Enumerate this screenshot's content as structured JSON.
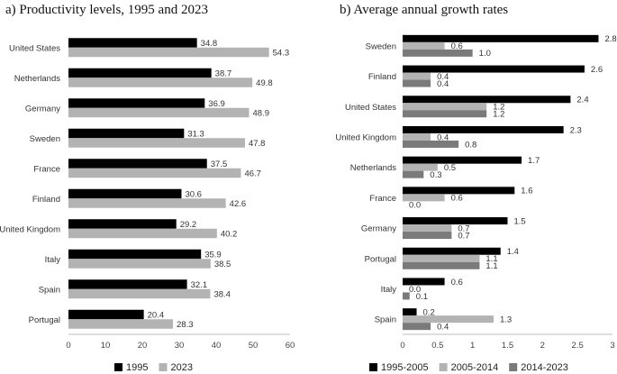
{
  "chart_data": [
    {
      "type": "bar",
      "orientation": "horizontal",
      "title": "a) Productivity levels, 1995 and 2023",
      "categories": [
        "United States",
        "Netherlands",
        "Germany",
        "Sweden",
        "France",
        "Finland",
        "United Kingdom",
        "Italy",
        "Spain",
        "Portugal"
      ],
      "series": [
        {
          "name": "1995",
          "color": "#000000",
          "values": [
            34.8,
            38.7,
            36.9,
            31.3,
            37.5,
            30.6,
            29.2,
            35.9,
            32.1,
            20.4
          ]
        },
        {
          "name": "2023",
          "color": "#b3b3b3",
          "values": [
            54.3,
            49.8,
            48.9,
            47.8,
            46.7,
            42.6,
            40.2,
            38.5,
            38.4,
            28.3
          ]
        }
      ],
      "xlim": [
        0,
        60
      ],
      "xticks": [
        "0",
        "10",
        "20",
        "30",
        "40",
        "50",
        "60"
      ],
      "grid": false,
      "legend": "bottom"
    },
    {
      "type": "bar",
      "orientation": "horizontal",
      "title": "b) Average annual growth rates",
      "categories": [
        "Sweden",
        "Finland",
        "United States",
        "United Kingdom",
        "Netherlands",
        "France",
        "Germany",
        "Portugal",
        "Italy",
        "Spain"
      ],
      "series": [
        {
          "name": "1995-2005",
          "color": "#000000",
          "values": [
            2.8,
            2.6,
            2.4,
            2.3,
            1.7,
            1.6,
            1.5,
            1.4,
            0.6,
            0.2
          ]
        },
        {
          "name": "2005-2014",
          "color": "#b3b3b3",
          "values": [
            0.6,
            0.4,
            1.2,
            0.4,
            0.5,
            0.6,
            0.7,
            1.1,
            0.0,
            1.3
          ]
        },
        {
          "name": "2014-2023",
          "color": "#7a7a7a",
          "values": [
            1.0,
            0.4,
            1.2,
            0.8,
            0.3,
            0.0,
            0.7,
            1.1,
            0.1,
            0.4
          ]
        }
      ],
      "xlim": [
        0,
        3
      ],
      "xticks": [
        "0",
        "0.5",
        "1",
        "1.5",
        "2",
        "2.5",
        "3"
      ],
      "grid": false,
      "legend": "bottom"
    }
  ]
}
